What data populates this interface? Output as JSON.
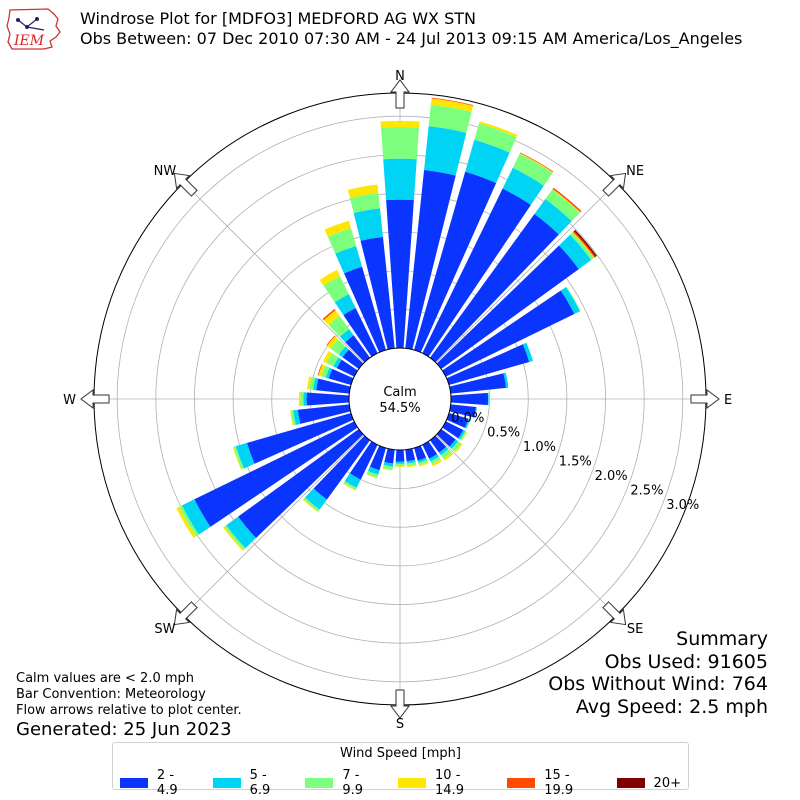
{
  "header": {
    "logo_text": "IEM",
    "title_line1": "Windrose Plot for [MDFO3] MEDFORD AG WX STN",
    "title_line2": "Obs Between: 07 Dec 2010 07:30 AM - 24 Jul 2013 09:15 AM America/Los_Angeles"
  },
  "footer": {
    "note1": "Calm values are < 2.0 mph",
    "note2": "Bar Convention: Meteorology",
    "note3": "Flow arrows relative to plot center.",
    "generated": "Generated: 25 Jun 2023"
  },
  "summary": {
    "title": "Summary",
    "obs_used": "Obs Used: 91605",
    "obs_without_wind": "Obs Without Wind: 764",
    "avg_speed": "Avg Speed: 2.5 mph"
  },
  "legend": {
    "title": "Wind Speed [mph]",
    "items": [
      {
        "label": "2 - 4.9",
        "color": "#0a35ff"
      },
      {
        "label": "5 - 6.9",
        "color": "#00d4f5"
      },
      {
        "label": "7 - 9.9",
        "color": "#7cff7c"
      },
      {
        "label": "10 - 14.9",
        "color": "#ffe600"
      },
      {
        "label": "15 - 19.9",
        "color": "#ff4a00"
      },
      {
        "label": "20+",
        "color": "#800000"
      }
    ]
  },
  "chart_data": {
    "type": "windrose",
    "title": "Windrose Plot for [MDFO3] MEDFORD AG WX STN",
    "calm_label": "Calm",
    "calm_value": "54.5%",
    "r_ticks": [
      "0.0%",
      "0.5%",
      "1.0%",
      "1.5%",
      "2.0%",
      "2.5%",
      "3.0%"
    ],
    "r_max": 3.3,
    "r_tick_values": [
      0,
      0.5,
      1.0,
      1.5,
      2.0,
      2.5,
      3.0
    ],
    "grid": true,
    "directions": [
      "N",
      "NE",
      "E",
      "SE",
      "S",
      "SW",
      "W",
      "NW"
    ],
    "legend_placement": "bottom",
    "sector_angles_deg": [
      0,
      10,
      20,
      30,
      40,
      50,
      60,
      70,
      80,
      90,
      100,
      110,
      120,
      130,
      140,
      150,
      160,
      170,
      180,
      190,
      200,
      210,
      220,
      230,
      240,
      250,
      260,
      270,
      280,
      290,
      300,
      310,
      320,
      330,
      340,
      350
    ],
    "series": [
      {
        "name": "2 - 4.9",
        "values": [
          1.92,
          2.32,
          2.4,
          2.37,
          2.3,
          2.2,
          1.85,
          1.08,
          0.72,
          0.48,
          0.33,
          0.26,
          0.25,
          0.23,
          0.2,
          0.2,
          0.17,
          0.15,
          0.15,
          0.18,
          0.3,
          0.5,
          0.95,
          1.93,
          2.3,
          1.4,
          0.67,
          0.55,
          0.43,
          0.3,
          0.25,
          0.26,
          0.36,
          0.65,
          1.12,
          1.45
        ]
      },
      {
        "name": "5 - 6.9",
        "values": [
          0.53,
          0.57,
          0.43,
          0.3,
          0.24,
          0.2,
          0.08,
          0.05,
          0.03,
          0.01,
          0.01,
          0.02,
          0.03,
          0.04,
          0.04,
          0.04,
          0.03,
          0.03,
          0.03,
          0.04,
          0.06,
          0.12,
          0.16,
          0.19,
          0.18,
          0.15,
          0.06,
          0.04,
          0.04,
          0.04,
          0.05,
          0.06,
          0.1,
          0.2,
          0.28,
          0.37
        ]
      },
      {
        "name": "7 - 9.9",
        "values": [
          0.41,
          0.28,
          0.22,
          0.2,
          0.15,
          0.04,
          0.01,
          0.0,
          0.0,
          0.0,
          0.0,
          0.01,
          0.02,
          0.05,
          0.06,
          0.04,
          0.03,
          0.03,
          0.03,
          0.04,
          0.04,
          0.03,
          0.03,
          0.03,
          0.04,
          0.03,
          0.03,
          0.04,
          0.05,
          0.06,
          0.1,
          0.13,
          0.21,
          0.26,
          0.24,
          0.2
        ]
      },
      {
        "name": "10 - 14.9",
        "values": [
          0.08,
          0.08,
          0.03,
          0.01,
          0.01,
          0.01,
          0.0,
          0.0,
          0.0,
          0.0,
          0.0,
          0.0,
          0.01,
          0.02,
          0.03,
          0.03,
          0.02,
          0.02,
          0.01,
          0.01,
          0.01,
          0.01,
          0.01,
          0.02,
          0.04,
          0.01,
          0.01,
          0.02,
          0.03,
          0.04,
          0.05,
          0.06,
          0.09,
          0.09,
          0.1,
          0.11
        ]
      },
      {
        "name": "15 - 19.9",
        "values": [
          0.0,
          0.01,
          0.0,
          0.01,
          0.02,
          0.02,
          0.0,
          0.0,
          0.0,
          0.0,
          0.0,
          0.0,
          0.0,
          0.0,
          0.0,
          0.0,
          0.0,
          0.0,
          0.0,
          0.0,
          0.0,
          0.0,
          0.0,
          0.0,
          0.0,
          0.0,
          0.0,
          0.0,
          0.0,
          0.01,
          0.0,
          0.01,
          0.02,
          0.0,
          0.0,
          0.0
        ]
      },
      {
        "name": "20+",
        "values": [
          0.0,
          0.0,
          0.0,
          0.0,
          0.0,
          0.02,
          0.0,
          0.0,
          0.0,
          0.0,
          0.0,
          0.0,
          0.0,
          0.0,
          0.0,
          0.0,
          0.0,
          0.0,
          0.0,
          0.0,
          0.0,
          0.0,
          0.0,
          0.0,
          0.0,
          0.0,
          0.0,
          0.0,
          0.0,
          0.0,
          0.0,
          0.0,
          0.0,
          0.0,
          0.0,
          0.0
        ]
      }
    ]
  }
}
